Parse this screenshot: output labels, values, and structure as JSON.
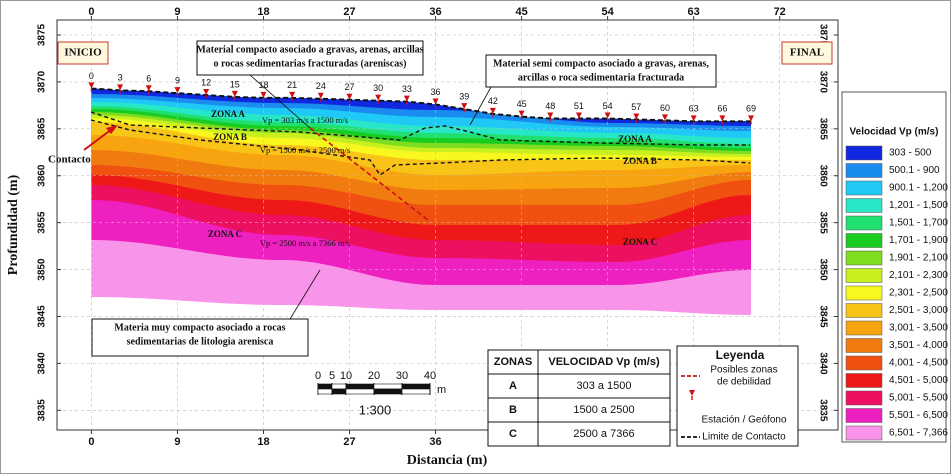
{
  "chart_data": {
    "type": "contour",
    "xlabel": "Distancia (m)",
    "ylabel": "Profundidad (m)",
    "xlim": [
      -3.6,
      78.1
    ],
    "ylim": [
      3832.9,
      3876.6
    ],
    "xticks": [
      0,
      9,
      18,
      27,
      36,
      45,
      54,
      63,
      72
    ],
    "yticks": [
      3835,
      3840,
      3845,
      3850,
      3855,
      3860,
      3865,
      3870,
      3875
    ],
    "grid": true,
    "stations": {
      "x": [
        0,
        3,
        6,
        9,
        12,
        15,
        18,
        21,
        24,
        27,
        30,
        33,
        36,
        39,
        42,
        45,
        48,
        51,
        54,
        57,
        60,
        63,
        66,
        69
      ],
      "elevation": [
        3869.3,
        3869.1,
        3869.0,
        3868.8,
        3868.6,
        3868.4,
        3868.3,
        3868.3,
        3868.2,
        3868.1,
        3868.0,
        3867.9,
        3867.6,
        3867.1,
        3866.6,
        3866.3,
        3866.1,
        3866.1,
        3866.1,
        3866.0,
        3865.9,
        3865.8,
        3865.8,
        3865.8
      ],
      "color": "#d01010"
    },
    "colorbar": {
      "title": "Velocidad Vp (m/s)",
      "labels": [
        "303 - 500",
        "500.1 - 900",
        "900.1 - 1,200",
        "1,201 - 1,500",
        "1,501 - 1,700",
        "1,701 - 1,900",
        "1,901 - 2,100",
        "2,101 - 2,300",
        "2,301 - 2,500",
        "2,501 - 3,000",
        "3,001 - 3,500",
        "3,501 - 4,000",
        "4,001 - 4,500",
        "4,501 - 5,000",
        "5,001 - 5,500",
        "5,501 - 6,500",
        "6,501 - 7,366"
      ],
      "colors": [
        "#1028e0",
        "#1a8cf0",
        "#20c8f5",
        "#28e6c8",
        "#20e070",
        "#18cc20",
        "#80dc20",
        "#c8f020",
        "#f8f820",
        "#f8c418",
        "#f8a410",
        "#f07c10",
        "#f05010",
        "#ee1818",
        "#ee1060",
        "#ee20c0",
        "#f894ea"
      ]
    },
    "start_label": "INICIO",
    "end_label": "FINAL",
    "contact_label": "Contacto",
    "annotations": [
      {
        "lines": [
          "Material compacto asociado a gravas, arenas, arcillas",
          "o rocas sedimentarias fracturadas (areniscas)"
        ]
      },
      {
        "lines": [
          "Material semi compacto asociado a gravas, arenas,",
          "arcillas o roca sedimentaria fracturada"
        ]
      },
      {
        "lines": [
          "Materia muy compacto asociado a  rocas",
          "sedimentarias de  litologia arenisca"
        ]
      }
    ],
    "zone_labels": [
      "ZONA A",
      "ZONA B",
      "ZONA C",
      "ZONA A",
      "ZONA B",
      "ZONA C"
    ],
    "velocity_labels": [
      "Vp = 303 m/s a 1500 m/s",
      "Vp = 1500 m/s a 2500 m/s",
      "Vp = 2500 m/s a 7366 m/s"
    ]
  },
  "zone_table": {
    "header": [
      "ZONAS",
      "VELOCIDAD Vp (m/s)"
    ],
    "rows": [
      [
        "A",
        "303 a 1500"
      ],
      [
        "B",
        "1500 a 2500"
      ],
      [
        "C",
        "2500 a 7366"
      ]
    ]
  },
  "legend": {
    "title": "Leyenda",
    "items": [
      [
        "Posibles zonas",
        "de debilidad"
      ],
      [
        "Estación / Geófono"
      ],
      [
        "Limite de Contacto"
      ]
    ]
  },
  "scale_bar": {
    "ticks": [
      0,
      5,
      10,
      20,
      30,
      40
    ],
    "unit": "m",
    "ratio": "1:300"
  }
}
